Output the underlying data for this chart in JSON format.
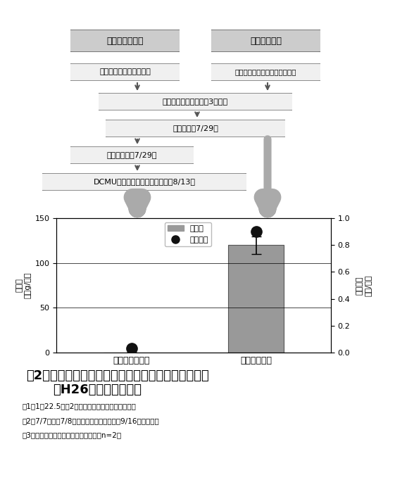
{
  "categories": [
    "総合的防除体系",
    "慣行防除体系"
  ],
  "bar_values": [
    0,
    120
  ],
  "bar_color": "#999999",
  "dot_values": [
    0.03,
    0.9
  ],
  "dot_color": "#111111",
  "error_bar": [
    0,
    10
  ],
  "ylim_left": [
    0,
    150
  ],
  "ylim_right": [
    0,
    1.0
  ],
  "yticks_left": [
    0,
    50,
    100,
    150
  ],
  "yticks_right": [
    0,
    0.2,
    0.4,
    0.6,
    0.8,
    1.0
  ],
  "ylabel_left": "残草量\n（生g/㎡）",
  "ylabel_right": "残草本数\n（本/㎡）",
  "legend_bar": "残草量",
  "legend_dot": "残草本数",
  "fig_title_line1": "図2　総合的防除体系によるアレチウリへの防除効果",
  "fig_title_line2": "（H26年，古試場内）",
  "note1": "注1）1区22.5㎡（2反復）のモデル試験による結果",
  "note2": "注2）7/7播種，7/8土壌処理型除草剤散布，9/16残草量調査",
  "note3": "注3）エラーバーは残草量の標準誤差（n=2）",
  "box_sogo": "総合的防除体系",
  "box_kanko": "慣行防除体系",
  "box_flumioxazin": "フルミオキサジン水和剤",
  "box_dimethanamid": "ジメテナミド・リニュロン乳剤",
  "box_bentazon": "ベンタゾン液剤（大豆3葉期）",
  "box_tillage": "中耕培土（7/29）",
  "box_hand": "手取り除草（7/29）",
  "box_dcmu": "DCMU水和剤　畦間・株間処理（8/13）",
  "bg_color": "#ffffff",
  "box_fill": "#e8e8e8",
  "box_edge": "#555555"
}
